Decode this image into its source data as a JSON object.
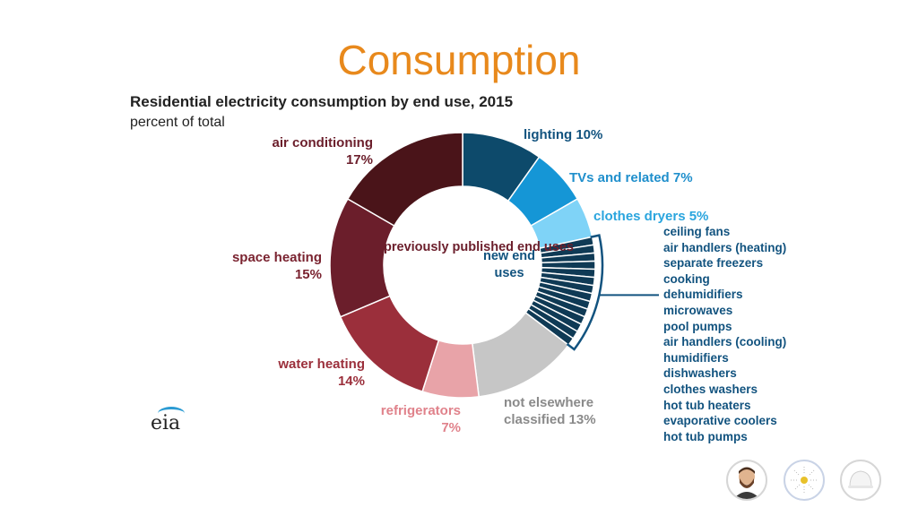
{
  "slide": {
    "title": "Consumption"
  },
  "chart_data": {
    "type": "pie",
    "title": "Residential electricity consumption by end use, 2015",
    "subtitle": "percent of total",
    "center_labels": {
      "previous": "previously published end uses",
      "new": "new end uses"
    },
    "slices": [
      {
        "label": "lighting",
        "value": 10,
        "value_text": "10%",
        "color": "#0d4a6b"
      },
      {
        "label": "TVs and related",
        "value": 7,
        "value_text": "7%",
        "color": "#1596d6"
      },
      {
        "label": "clothes dryers",
        "value": 5,
        "value_text": "5%",
        "color": "#7fd3f7"
      },
      {
        "label": "new end uses",
        "value": 14,
        "color": "#0f3a55",
        "group": true
      },
      {
        "label": "not elsewhere classified",
        "value": 13,
        "value_text": "13%",
        "color": "#c6c6c6"
      },
      {
        "label": "refrigerators",
        "value": 7,
        "value_text": "7%",
        "color": "#e8a3a8"
      },
      {
        "label": "water heating",
        "value": 14,
        "value_text": "14%",
        "color": "#9b2f3b"
      },
      {
        "label": "space heating",
        "value": 15,
        "value_text": "15%",
        "color": "#6b1e2b"
      },
      {
        "label": "air conditioning",
        "value": 17,
        "value_text": "17%",
        "color": "#4a1419"
      }
    ],
    "new_end_uses": [
      "ceiling fans",
      "air handlers (heating)",
      "separate freezers",
      "cooking",
      "dehumidifiers",
      "microwaves",
      "pool pumps",
      "air handlers (cooling)",
      "humidifiers",
      "dishwashers",
      "clothes washers",
      "hot tub heaters",
      "evaporative coolers",
      "hot tub pumps"
    ]
  },
  "logo": {
    "text": "eia"
  },
  "avatars": [
    "person-avatar",
    "sun-avatar",
    "helmet-avatar"
  ]
}
